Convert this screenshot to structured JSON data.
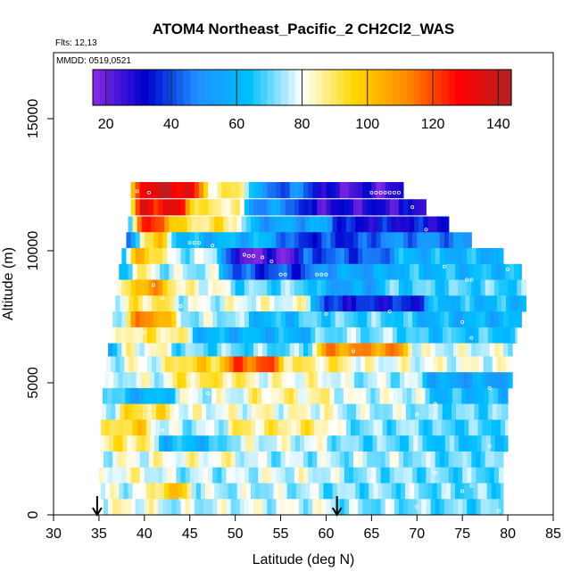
{
  "chart_data": {
    "type": "heatmap",
    "title": "ATOM4 Northeast_Pacific_2 CH2Cl2_WAS",
    "flights_note": "Flts: 12,13",
    "dates_note": "MMDD: 0519,0521",
    "xlabel": "Latitude (deg N)",
    "ylabel": "Altitude (m)",
    "xlim": [
      30,
      85
    ],
    "ylim": [
      0,
      17500
    ],
    "x_ticks": [
      30,
      35,
      40,
      45,
      50,
      55,
      60,
      65,
      70,
      75,
      80,
      85
    ],
    "y_ticks": [
      0,
      5000,
      10000,
      15000
    ],
    "colorbar": {
      "range": [
        16,
        144
      ],
      "ticks": [
        20,
        40,
        60,
        80,
        100,
        120,
        140
      ],
      "colors": [
        "#8a2be2",
        "#0000cd",
        "#1e90ff",
        "#00bfff",
        "#ffffff",
        "#ffd700",
        "#ff8c00",
        "#ff0000",
        "#b22222"
      ]
    },
    "arrows_lat": [
      34.8,
      61.2
    ],
    "background_value": 75,
    "bands": [
      {
        "alt": 12300,
        "lat_min": 38.5,
        "lat_max": 68.5,
        "v0": 30,
        "v1": 25,
        "patches": [
          [
            39.5,
            47,
            135
          ],
          [
            47,
            53,
            88
          ],
          [
            53,
            60,
            45
          ],
          [
            60,
            68.5,
            25
          ]
        ]
      },
      {
        "alt": 11650,
        "lat_min": 38.5,
        "lat_max": 71.0,
        "v0": 30,
        "v1": 25,
        "patches": [
          [
            39.5,
            46,
            130
          ],
          [
            46,
            52,
            88
          ],
          [
            52,
            58,
            50
          ],
          [
            58,
            71,
            28
          ]
        ]
      },
      {
        "alt": 11000,
        "lat_min": 38.2,
        "lat_max": 73.5,
        "v0": 30,
        "v1": 30,
        "patches": [
          [
            39.5,
            44,
            120
          ],
          [
            44,
            52,
            90
          ],
          [
            52,
            62,
            55
          ],
          [
            62,
            73.5,
            32
          ]
        ]
      },
      {
        "alt": 10400,
        "lat_min": 38.0,
        "lat_max": 76.0,
        "v0": 30,
        "v1": 45,
        "patches": [
          [
            40,
            44,
            95
          ],
          [
            44,
            56,
            60
          ],
          [
            56,
            66,
            38
          ],
          [
            66,
            76,
            48
          ]
        ]
      },
      {
        "alt": 9800,
        "lat_min": 37.5,
        "lat_max": 79.5,
        "v0": 45,
        "v1": 55,
        "patches": [
          [
            39,
            43,
            100
          ],
          [
            43,
            50,
            75
          ],
          [
            50,
            58,
            22
          ],
          [
            58,
            68,
            42
          ],
          [
            68,
            79.5,
            60
          ]
        ]
      },
      {
        "alt": 9200,
        "lat_min": 37.2,
        "lat_max": 81.5,
        "v0": 55,
        "v1": 65,
        "patches": [
          [
            39,
            42,
            85
          ],
          [
            42,
            50,
            75
          ],
          [
            50,
            60,
            40
          ],
          [
            60,
            68,
            55
          ],
          [
            68,
            81.5,
            62
          ]
        ]
      },
      {
        "alt": 8600,
        "lat_min": 37.0,
        "lat_max": 82.0,
        "v0": 70,
        "v1": 68,
        "patches": [
          [
            39,
            44,
            105
          ],
          [
            44,
            50,
            82
          ],
          [
            50,
            60,
            70
          ],
          [
            60,
            67,
            55
          ],
          [
            67,
            82,
            68
          ]
        ]
      },
      {
        "alt": 8000,
        "lat_min": 36.8,
        "lat_max": 82.0,
        "v0": 75,
        "v1": 65,
        "patches": [
          [
            39,
            44,
            90
          ],
          [
            44,
            50,
            78
          ],
          [
            50,
            60,
            80
          ],
          [
            60,
            72,
            35
          ],
          [
            72,
            82,
            62
          ]
        ]
      },
      {
        "alt": 7400,
        "lat_min": 36.5,
        "lat_max": 81.5,
        "v0": 70,
        "v1": 62,
        "patches": [
          [
            39,
            44,
            110
          ],
          [
            44,
            52,
            75
          ],
          [
            52,
            58,
            62
          ],
          [
            58,
            70,
            68
          ],
          [
            70,
            81.5,
            60
          ]
        ]
      },
      {
        "alt": 6800,
        "lat_min": 36.3,
        "lat_max": 81.0,
        "v0": 68,
        "v1": 72,
        "patches": [
          [
            38,
            46,
            88
          ],
          [
            46,
            60,
            60
          ],
          [
            60,
            70,
            72
          ],
          [
            70,
            81,
            65
          ]
        ]
      },
      {
        "alt": 6200,
        "lat_min": 36.0,
        "lat_max": 80.5,
        "v0": 55,
        "v1": 75,
        "patches": [
          [
            38,
            44,
            82
          ],
          [
            44,
            60,
            70
          ],
          [
            60,
            70,
            110
          ],
          [
            70,
            80.5,
            78
          ]
        ]
      },
      {
        "alt": 5700,
        "lat_min": 35.8,
        "lat_max": 80.5,
        "v0": 75,
        "v1": 78,
        "patches": [
          [
            38,
            44,
            80
          ],
          [
            44,
            50,
            95
          ],
          [
            50,
            56,
            118
          ],
          [
            56,
            64,
            88
          ],
          [
            64,
            80.5,
            80
          ]
        ]
      },
      {
        "alt": 5100,
        "lat_min": 35.6,
        "lat_max": 80.5,
        "v0": 72,
        "v1": 60,
        "patches": [
          [
            38,
            44,
            78
          ],
          [
            44,
            52,
            90
          ],
          [
            52,
            62,
            82
          ],
          [
            62,
            72,
            75
          ],
          [
            72,
            80.5,
            55
          ]
        ]
      },
      {
        "alt": 4500,
        "lat_min": 35.4,
        "lat_max": 80.0,
        "v0": 72,
        "v1": 62,
        "patches": [
          [
            38,
            44,
            60
          ],
          [
            44,
            52,
            78
          ],
          [
            52,
            62,
            85
          ],
          [
            62,
            72,
            78
          ],
          [
            72,
            80,
            62
          ]
        ]
      },
      {
        "alt": 3900,
        "lat_min": 35.3,
        "lat_max": 80.0,
        "v0": 75,
        "v1": 70,
        "patches": [
          [
            38,
            44,
            92
          ],
          [
            44,
            52,
            80
          ],
          [
            52,
            62,
            82
          ],
          [
            62,
            72,
            75
          ],
          [
            72,
            80,
            70
          ]
        ]
      },
      {
        "alt": 3300,
        "lat_min": 35.2,
        "lat_max": 80.0,
        "v0": 80,
        "v1": 72,
        "patches": [
          [
            37,
            42,
            95
          ],
          [
            42,
            50,
            75
          ],
          [
            50,
            62,
            88
          ],
          [
            62,
            72,
            72
          ],
          [
            72,
            80,
            68
          ]
        ]
      },
      {
        "alt": 2700,
        "lat_min": 35.1,
        "lat_max": 80.0,
        "v0": 82,
        "v1": 70,
        "patches": [
          [
            37,
            42,
            90
          ],
          [
            42,
            50,
            62
          ],
          [
            50,
            62,
            78
          ],
          [
            62,
            72,
            70
          ],
          [
            72,
            80,
            66
          ]
        ]
      },
      {
        "alt": 2100,
        "lat_min": 35.0,
        "lat_max": 79.5,
        "v0": 78,
        "v1": 72,
        "patches": [
          [
            37,
            42,
            80
          ],
          [
            42,
            52,
            82
          ],
          [
            52,
            62,
            75
          ],
          [
            62,
            72,
            74
          ],
          [
            72,
            79.5,
            70
          ]
        ]
      },
      {
        "alt": 1500,
        "lat_min": 35.0,
        "lat_max": 79.5,
        "v0": 75,
        "v1": 72,
        "patches": [
          [
            37,
            42,
            82
          ],
          [
            42,
            52,
            75
          ],
          [
            52,
            62,
            78
          ],
          [
            62,
            72,
            72
          ],
          [
            72,
            79.5,
            70
          ]
        ]
      },
      {
        "alt": 900,
        "lat_min": 35.2,
        "lat_max": 79.5,
        "v0": 72,
        "v1": 70,
        "patches": [
          [
            36,
            42,
            78
          ],
          [
            42,
            46,
            98
          ],
          [
            46,
            60,
            75
          ],
          [
            60,
            72,
            72
          ],
          [
            72,
            79.5,
            70
          ]
        ]
      },
      {
        "alt": 300,
        "lat_min": 35.5,
        "lat_max": 79.5,
        "v0": 72,
        "v1": 70,
        "patches": [
          [
            36,
            42,
            82
          ],
          [
            42,
            50,
            76
          ],
          [
            50,
            62,
            78
          ],
          [
            62,
            72,
            72
          ],
          [
            72,
            79.5,
            70
          ]
        ]
      }
    ],
    "sample_points": [
      [
        39.2,
        12250
      ],
      [
        40.5,
        12200
      ],
      [
        65,
        12200
      ],
      [
        65.5,
        12200
      ],
      [
        66,
        12200
      ],
      [
        66.5,
        12200
      ],
      [
        67,
        12200
      ],
      [
        67.5,
        12200
      ],
      [
        68,
        12200
      ],
      [
        69.5,
        11650
      ],
      [
        71,
        10800
      ],
      [
        45,
        10300
      ],
      [
        45.5,
        10300
      ],
      [
        46,
        10300
      ],
      [
        47.5,
        10200
      ],
      [
        51,
        9850
      ],
      [
        51.5,
        9800
      ],
      [
        52,
        9800
      ],
      [
        53,
        9750
      ],
      [
        54,
        9600
      ],
      [
        55,
        9100
      ],
      [
        55.5,
        9100
      ],
      [
        59,
        9100
      ],
      [
        59.5,
        9100
      ],
      [
        60,
        9100
      ],
      [
        73,
        9400
      ],
      [
        80,
        9300
      ],
      [
        82,
        9500
      ],
      [
        75.5,
        8900
      ],
      [
        76,
        8900
      ],
      [
        41,
        8700
      ],
      [
        42,
        8200
      ],
      [
        44,
        7900
      ],
      [
        60,
        7600
      ],
      [
        67,
        7700
      ],
      [
        75,
        7300
      ],
      [
        40,
        6900
      ],
      [
        76,
        6700
      ],
      [
        63,
        6200
      ],
      [
        42,
        5400
      ],
      [
        45,
        5200
      ],
      [
        72,
        5500
      ],
      [
        78,
        4800
      ],
      [
        47,
        4600
      ],
      [
        72,
        4200
      ],
      [
        70,
        3800
      ],
      [
        55,
        3400
      ],
      [
        42,
        3200
      ],
      [
        60,
        3000
      ],
      [
        78,
        2600
      ],
      [
        36,
        1700
      ],
      [
        72,
        1600
      ],
      [
        65,
        1300
      ],
      [
        76,
        1100
      ],
      [
        75,
        900
      ],
      [
        44,
        600
      ],
      [
        70,
        300
      ],
      [
        79,
        150
      ]
    ]
  }
}
